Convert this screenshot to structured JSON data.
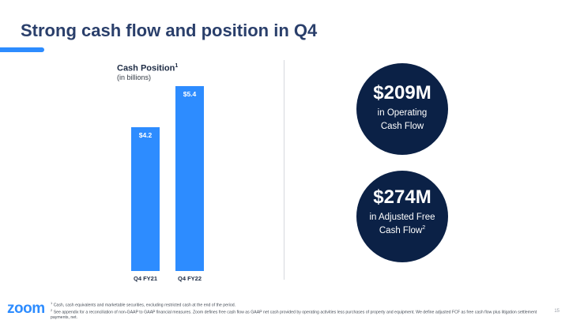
{
  "slide": {
    "title": "Strong cash flow and position in Q4",
    "page_number": "15"
  },
  "chart_data": {
    "type": "bar",
    "title": "Cash Position",
    "title_footnote": "1",
    "subtitle": "(in billions)",
    "categories": [
      "Q4 FY21",
      "Q4 FY22"
    ],
    "values": [
      4.2,
      5.4
    ],
    "value_labels": [
      "$4.2",
      "$5.4"
    ],
    "ylim": [
      0,
      5.4
    ],
    "grid": false,
    "bar_color": "#2d8cff"
  },
  "highlights": [
    {
      "value": "$209M",
      "label": "in Operating Cash Flow",
      "footnote": ""
    },
    {
      "value": "$274M",
      "label": "in Adjusted Free Cash Flow",
      "footnote": "2"
    }
  ],
  "footnotes": [
    {
      "marker": "1",
      "text": "Cash, cash equivalents and marketable securities, excluding restricted cash at the end of the period."
    },
    {
      "marker": "2",
      "text": "See appendix for a reconciliation of non-GAAP to GAAP financial measures. Zoom defines free cash flow as GAAP net cash provided by operating activities less purchases of property and equipment. We define adjusted FCF as free cash flow plus litigation settlement payments, net."
    }
  ],
  "logo": {
    "text": "zoom"
  },
  "colors": {
    "title": "#2a3f6b",
    "accent": "#2d8cff",
    "circle": "#0b2146"
  }
}
